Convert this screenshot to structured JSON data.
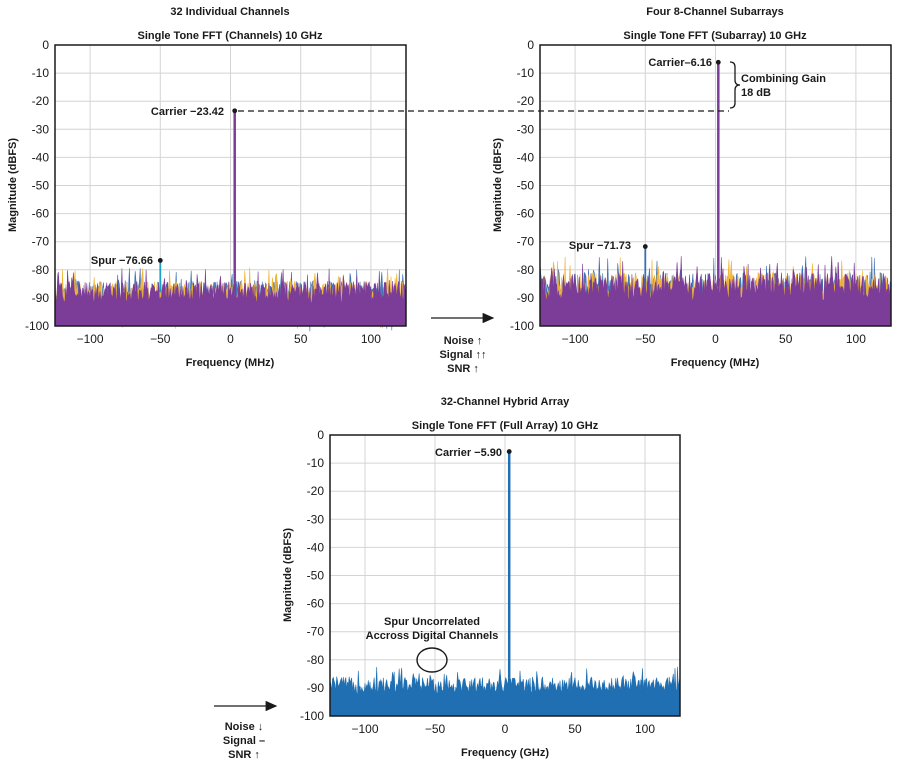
{
  "chart_data": [
    {
      "type": "line",
      "id": "p1",
      "heading": "32 Individual Channels",
      "title": "Single Tone FFT (Channels) 10 GHz",
      "xlabel": "Frequency (MHz)",
      "ylabel": "Magnitude (dBFS)",
      "xlim": [
        -125,
        125
      ],
      "ylim": [
        -100,
        0
      ],
      "xticks": [
        -100,
        -50,
        0,
        50,
        100
      ],
      "yticks": [
        0,
        -10,
        -20,
        -30,
        -40,
        -50,
        -60,
        -70,
        -80,
        -90,
        -100
      ],
      "grid": true,
      "noise_floor": {
        "center": -88,
        "spread": 4,
        "colors": [
          "#3a6db3",
          "#f2b233",
          "#7b3d98"
        ]
      },
      "carrier": {
        "x": 3,
        "y": -23.42,
        "label": "Carrier −23.42",
        "color": "#7b3d98"
      },
      "spur": {
        "x": -50,
        "y": -76.66,
        "label": "Spur −76.66",
        "color": "#1aa0c8"
      }
    },
    {
      "type": "line",
      "id": "p2",
      "heading": "Four 8-Channel Subarrays",
      "title": "Single Tone FFT (Subarray) 10 GHz",
      "xlabel": "Frequency (MHz)",
      "ylabel": "Magnitude (dBFS)",
      "xlim": [
        -125,
        125
      ],
      "ylim": [
        -100,
        0
      ],
      "xticks": [
        -100,
        -50,
        0,
        50,
        100
      ],
      "yticks": [
        0,
        -10,
        -20,
        -30,
        -40,
        -50,
        -60,
        -70,
        -80,
        -90,
        -100
      ],
      "grid": true,
      "noise_floor": {
        "center": -86,
        "spread": 5,
        "colors": [
          "#3a6db3",
          "#f2b233",
          "#7b3d98"
        ]
      },
      "carrier": {
        "x": 2,
        "y": -6.16,
        "label": "Carrier–6.16",
        "color": "#7b3d98"
      },
      "spur": {
        "x": -50,
        "y": -71.73,
        "label": "Spur −71.73",
        "color": "#3a6db3"
      },
      "combining_gain": {
        "from": -23.42,
        "to": -6.16,
        "label_line1": "Combining Gain",
        "label_line2": "18 dB"
      }
    },
    {
      "type": "line",
      "id": "p3",
      "heading": "32-Channel Hybrid Array",
      "title": "Single Tone FFT (Full Array) 10 GHz",
      "xlabel": "Frequency (GHz)",
      "ylabel": "Magnitude (dBFS)",
      "xlim": [
        -125,
        125
      ],
      "ylim": [
        -100,
        0
      ],
      "xticks": [
        -100,
        -50,
        0,
        50,
        100
      ],
      "yticks": [
        0,
        -10,
        -20,
        -30,
        -40,
        -50,
        -60,
        -70,
        -80,
        -90,
        -100
      ],
      "grid": true,
      "noise_floor": {
        "center": -89,
        "spread": 3,
        "colors": [
          "#1f6fb2"
        ]
      },
      "carrier": {
        "x": 3,
        "y": -5.9,
        "label": "Carrier −5.90",
        "color": "#1f6fb2"
      },
      "annotation": {
        "line1": "Spur Uncorrelated",
        "line2": "Accross Digital Channels",
        "x": -50,
        "y": -80
      }
    }
  ],
  "transitions": [
    {
      "lines": [
        "Noise ↑",
        "Signal ↑↑",
        "SNR ↑"
      ]
    },
    {
      "lines": [
        "Noise ↓",
        "Signal –",
        "SNR ↑"
      ]
    }
  ]
}
